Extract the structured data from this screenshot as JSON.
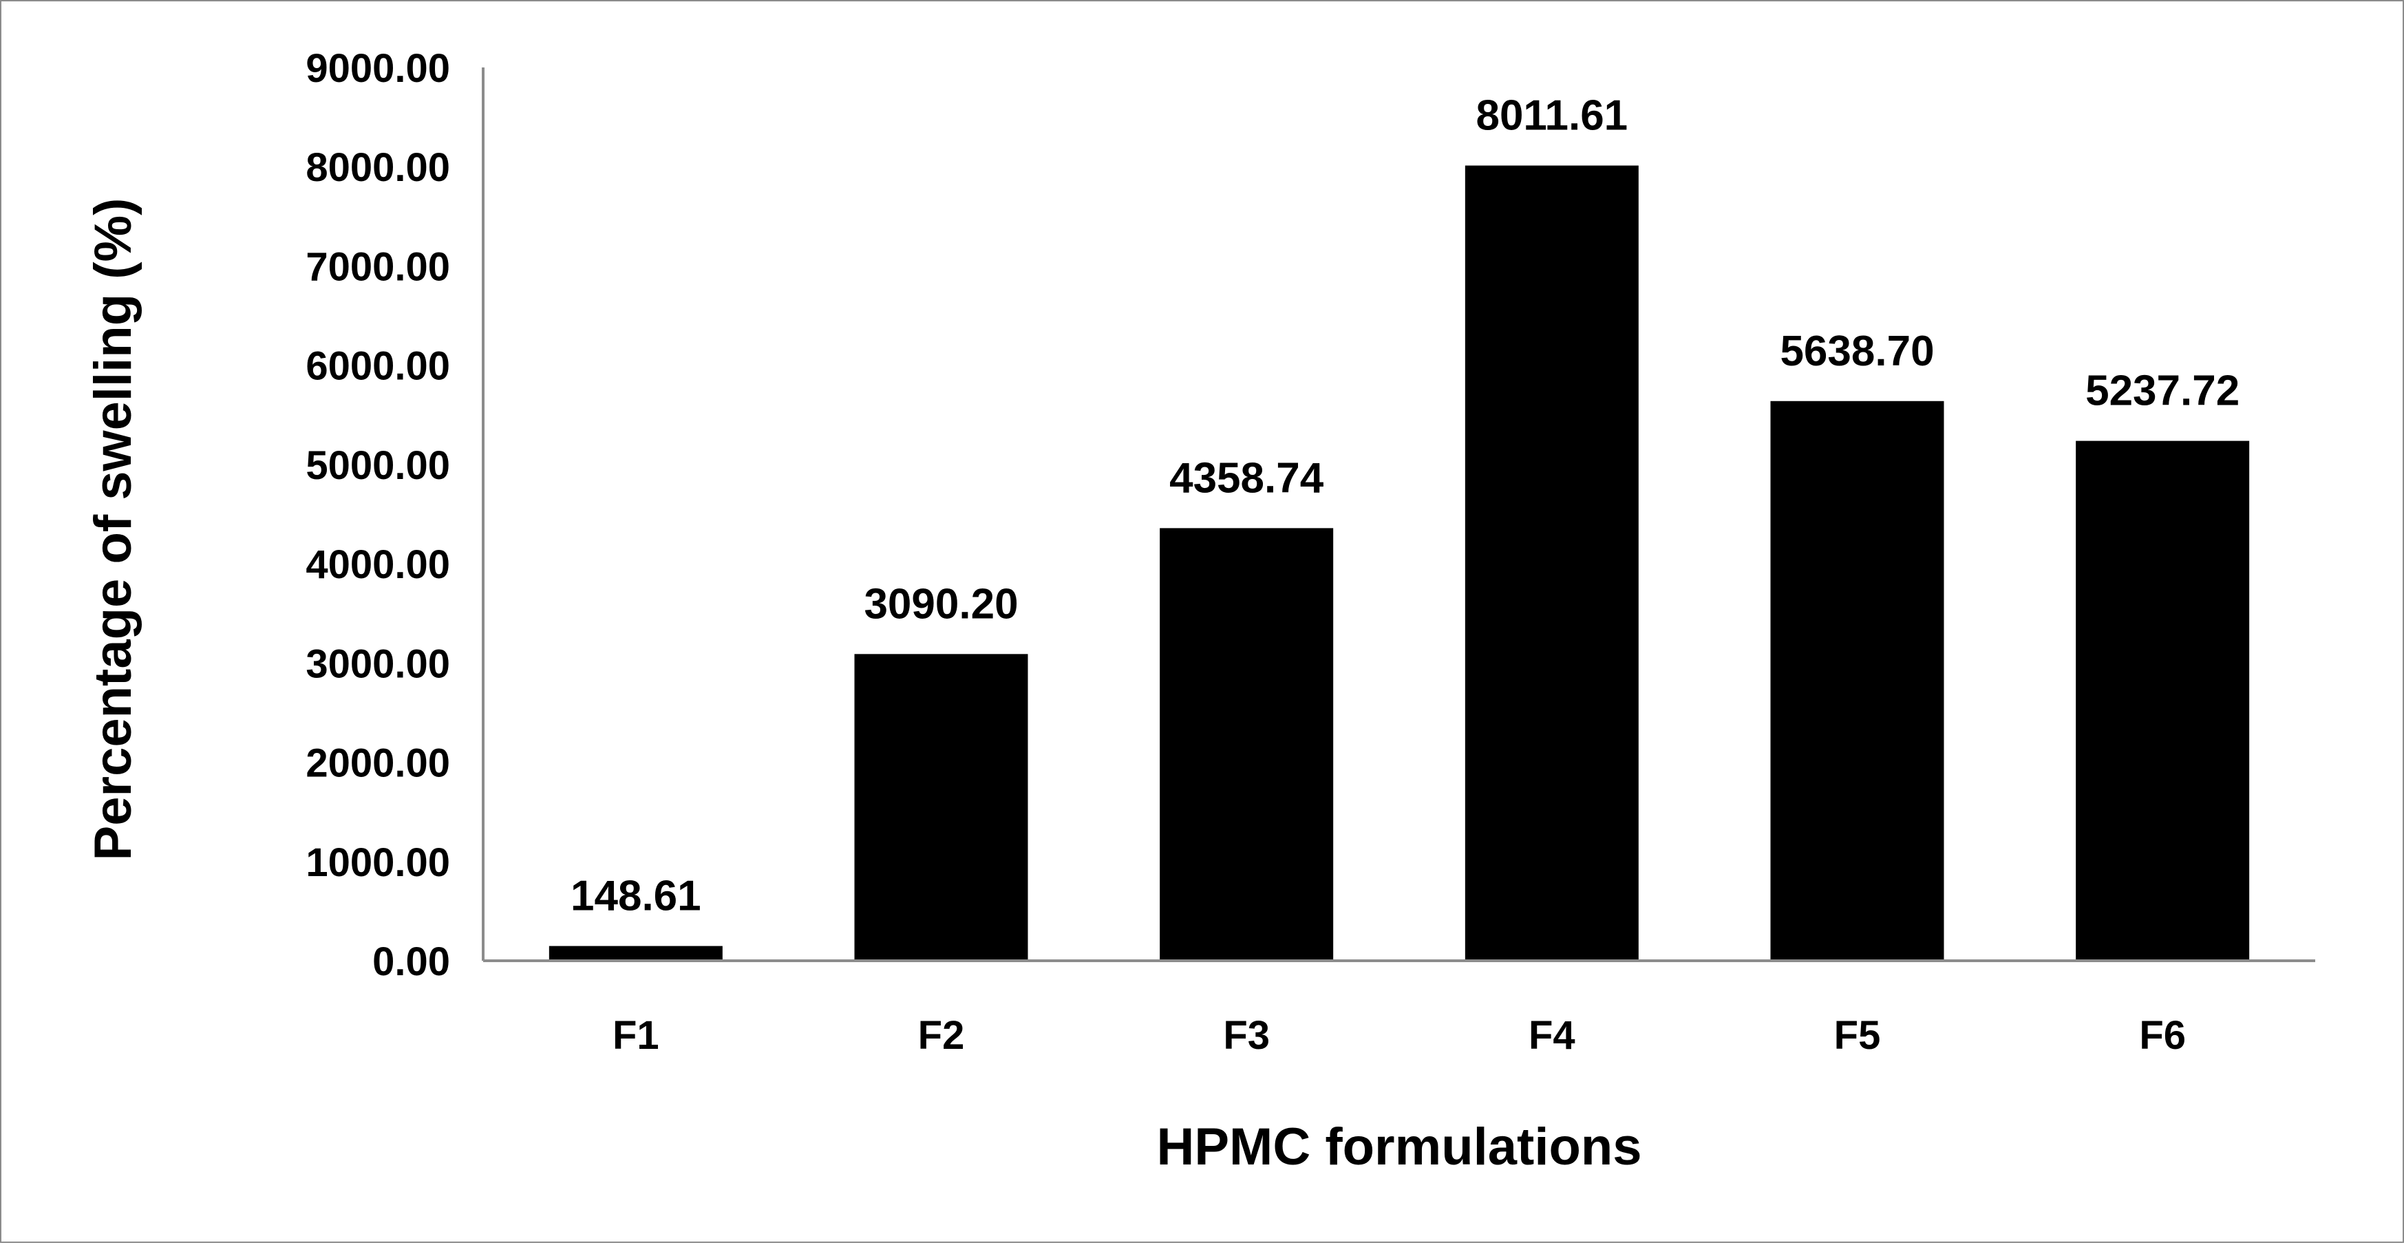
{
  "chart_data": {
    "type": "bar",
    "title": "",
    "xlabel": "HPMC formulations",
    "ylabel": "Percentage of swelling (%)",
    "categories": [
      "F1",
      "F2",
      "F3",
      "F4",
      "F5",
      "F6"
    ],
    "values": [
      148.61,
      3090.2,
      4358.74,
      8011.61,
      5638.7,
      5237.72
    ],
    "value_labels": [
      "148.61",
      "3090.20",
      "4358.74",
      "8011.61",
      "5638.70",
      "5237.72"
    ],
    "ylim": [
      0,
      9000
    ],
    "yticks": [
      0,
      1000,
      2000,
      3000,
      4000,
      5000,
      6000,
      7000,
      8000,
      9000
    ],
    "ytick_labels": [
      "0.00",
      "1000.00",
      "2000.00",
      "3000.00",
      "4000.00",
      "5000.00",
      "6000.00",
      "7000.00",
      "8000.00",
      "9000.00"
    ],
    "grid": false,
    "legend": "none",
    "colors": {
      "bar": "#000000",
      "axis": "#8c8c8c",
      "border": "#8c8c8c",
      "background": "#ffffff"
    }
  }
}
